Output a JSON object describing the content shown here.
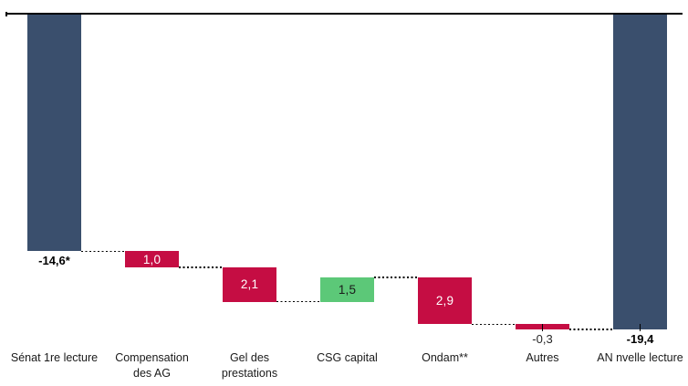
{
  "chart_data": {
    "type": "bar",
    "subtype": "waterfall",
    "title": "",
    "legend": null,
    "axis": {
      "zero_line_at_top": true,
      "ylim": [
        -20,
        0
      ],
      "grid": false,
      "tick_labels_visible": false
    },
    "colors": {
      "total": "#3A4F6D",
      "decrease": "#C50D43",
      "increase": "#5CC878",
      "axis": "#000000",
      "connector": "#000000",
      "background": "#FFFFFF"
    },
    "categories": [
      "Sénat 1re lecture",
      "Compensation des AG",
      "Gel des prestations",
      "CSG capital",
      "Ondam**",
      "Autres",
      "AN nvelle lecture"
    ],
    "bars": [
      {
        "label": "Sénat 1re lecture",
        "display_label": "Sénat 1re lecture",
        "kind": "total",
        "value": -14.6,
        "value_display": "-14,6*",
        "color": "#3A4F6D",
        "value_label_placement": "below",
        "value_label_style": "bold",
        "value_label_color": "#000000",
        "leader_tick": false
      },
      {
        "label": "Compensation des AG",
        "display_label": "Compensation\ndes AG",
        "kind": "delta",
        "value": -1.0,
        "value_display": "1,0",
        "color": "#C50D43",
        "value_label_placement": "inside",
        "value_label_style": "regular",
        "value_label_color": "#FFFFFF",
        "leader_tick": false
      },
      {
        "label": "Gel des prestations",
        "display_label": "Gel des\nprestations",
        "kind": "delta",
        "value": -2.1,
        "value_display": "2,1",
        "color": "#C50D43",
        "value_label_placement": "inside",
        "value_label_style": "regular",
        "value_label_color": "#FFFFFF",
        "leader_tick": false
      },
      {
        "label": "CSG capital",
        "display_label": "CSG capital",
        "kind": "delta",
        "value": 1.5,
        "value_display": "1,5",
        "color": "#5CC878",
        "value_label_placement": "inside",
        "value_label_style": "regular",
        "value_label_color": "#1a1a1a",
        "leader_tick": false
      },
      {
        "label": "Ondam**",
        "display_label": "Ondam**",
        "kind": "delta",
        "value": -2.9,
        "value_display": "2,9",
        "color": "#C50D43",
        "value_label_placement": "inside",
        "value_label_style": "regular",
        "value_label_color": "#FFFFFF",
        "leader_tick": false
      },
      {
        "label": "Autres",
        "display_label": "Autres",
        "kind": "delta",
        "value": -0.3,
        "value_display": "-0,3",
        "color": "#C50D43",
        "value_label_placement": "below",
        "value_label_style": "regular",
        "value_label_color": "#262626",
        "leader_tick": true
      },
      {
        "label": "AN nvelle lecture",
        "display_label": "AN nvelle lecture",
        "kind": "total",
        "value": -19.4,
        "value_display": "-19,4",
        "color": "#3A4F6D",
        "value_label_placement": "below",
        "value_label_style": "bold",
        "value_label_color": "#000000",
        "leader_tick": true
      }
    ]
  }
}
